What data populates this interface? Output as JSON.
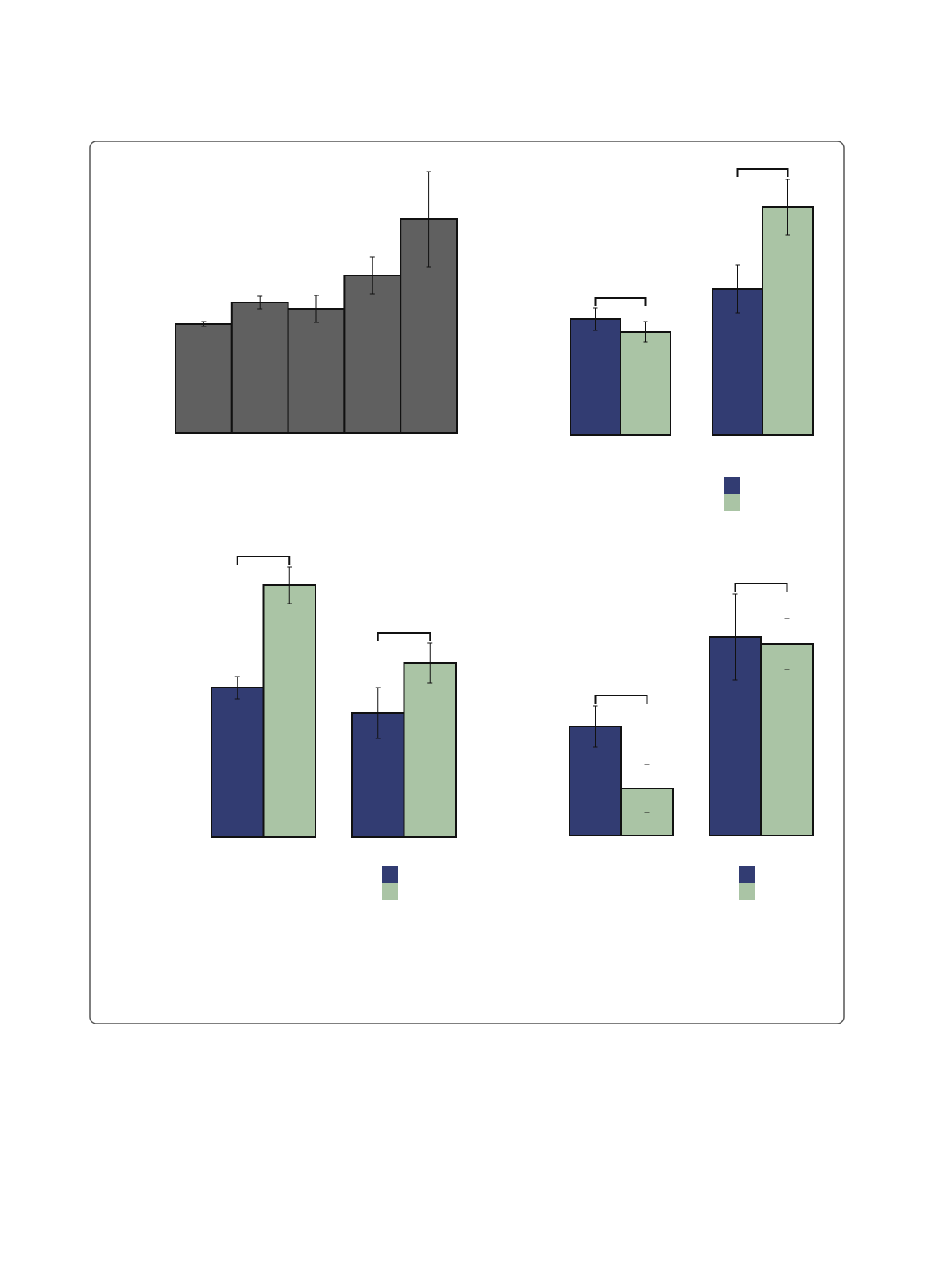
{
  "chart_data": [
    {
      "type": "bar",
      "categories": [
        null,
        null,
        null,
        null,
        null
      ],
      "values": [
        1.37,
        1.64,
        1.56,
        1.98,
        2.69
      ],
      "errors": [
        0.03,
        0.08,
        0.17,
        0.23,
        0.6
      ],
      "color": "#606060",
      "ylim": [
        0,
        3.3
      ]
    },
    {
      "type": "grouped-bar",
      "categories": [
        null,
        null
      ],
      "series": [
        {
          "color": "#323c72",
          "values": [
            1.46,
            1.84
          ],
          "errors": [
            0.14,
            0.3
          ]
        },
        {
          "color": "#aac4a5",
          "values": [
            1.3,
            2.87
          ],
          "errors": [
            0.13,
            0.35
          ]
        }
      ],
      "ylim": [
        0,
        3.4
      ],
      "legend": "bottom-right"
    },
    {
      "type": "grouped-bar",
      "categories": [
        null,
        null
      ],
      "series": [
        {
          "color": "#323c72",
          "values": [
            1.88,
            1.56
          ],
          "errors": [
            0.14,
            0.32
          ]
        },
        {
          "color": "#aac4a5",
          "values": [
            3.17,
            2.19
          ],
          "errors": [
            0.23,
            0.25
          ]
        }
      ],
      "ylim": [
        0,
        3.6
      ],
      "legend": "bottom-right"
    },
    {
      "type": "grouped-bar",
      "categories": [
        null,
        null
      ],
      "series": [
        {
          "color": "#323c72",
          "values": [
            1.37,
            2.5
          ],
          "errors": [
            0.26,
            0.54
          ]
        },
        {
          "color": "#aac4a5",
          "values": [
            0.59,
            2.41
          ],
          "errors": [
            0.3,
            0.32
          ]
        }
      ],
      "ylim": [
        0,
        3.6
      ],
      "legend": "bottom-right"
    }
  ]
}
